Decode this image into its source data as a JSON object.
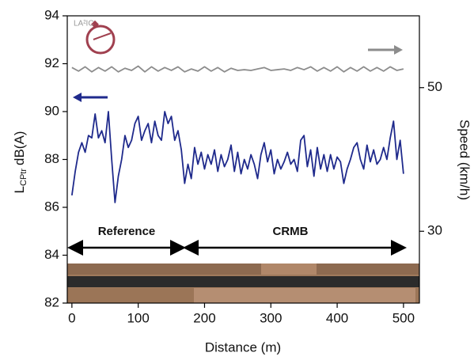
{
  "chart_data": {
    "type": "line",
    "xlabel": "Distance (m)",
    "ylabel": [
      "L",
      "CPtr",
      "dB(A)"
    ],
    "y2label": "Speed (km/h)",
    "logo": "LA²IC",
    "annotations": [
      "Reference",
      "CRMB"
    ],
    "xlim": [
      -7,
      524
    ],
    "xticks": [
      0,
      100,
      200,
      300,
      400,
      500
    ],
    "ylim": [
      82,
      94
    ],
    "yticks": [
      82,
      84,
      86,
      88,
      90,
      92,
      94
    ],
    "y2lim": [
      20,
      60
    ],
    "y2ticks": [
      30,
      50
    ],
    "series": [
      {
        "color": "#1f2a8c",
        "x": [
          0,
          5,
          10,
          15,
          20,
          25,
          30,
          35,
          40,
          45,
          50,
          55,
          60,
          65,
          70,
          75,
          80,
          85,
          90,
          95,
          100,
          105,
          110,
          115,
          120,
          125,
          130,
          135,
          140,
          145,
          150,
          155,
          160,
          165,
          170,
          175,
          180,
          185,
          190,
          195,
          200,
          205,
          210,
          215,
          220,
          225,
          230,
          235,
          240,
          245,
          250,
          255,
          260,
          265,
          270,
          275,
          280,
          285,
          290,
          295,
          300,
          305,
          310,
          315,
          320,
          325,
          330,
          335,
          340,
          345,
          350,
          355,
          360,
          365,
          370,
          375,
          380,
          385,
          390,
          395,
          400,
          405,
          410,
          415,
          420,
          425,
          430,
          435,
          440,
          445,
          450,
          455,
          460,
          465,
          470,
          475,
          480,
          485,
          490,
          495,
          500
        ],
        "values": [
          86.5,
          87.5,
          88.3,
          88.7,
          88.3,
          89.0,
          88.9,
          89.9,
          88.9,
          89.2,
          88.7,
          90.0,
          88.0,
          86.2,
          87.3,
          88.0,
          89.0,
          88.5,
          88.8,
          89.5,
          89.8,
          88.8,
          89.2,
          89.5,
          88.7,
          89.6,
          89.0,
          88.8,
          90.0,
          89.5,
          89.8,
          88.8,
          89.2,
          88.4,
          87.0,
          87.8,
          87.2,
          88.5,
          87.8,
          88.3,
          87.6,
          88.2,
          87.8,
          88.4,
          87.5,
          88.2,
          87.7,
          88.0,
          88.6,
          87.5,
          88.3,
          87.4,
          88.0,
          87.6,
          88.2,
          87.8,
          87.2,
          88.2,
          88.7,
          87.9,
          88.4,
          87.4,
          88.0,
          87.6,
          87.9,
          88.3,
          87.8,
          88.0,
          87.5,
          88.8,
          89.0,
          87.7,
          88.4,
          87.3,
          88.5,
          87.6,
          88.2,
          87.5,
          88.2,
          87.6,
          88.1,
          87.9,
          87.0,
          87.6,
          88.0,
          88.5,
          88.7,
          88.0,
          87.6,
          88.6,
          87.9,
          88.4,
          87.8,
          88.0,
          88.5,
          88.0,
          88.9,
          89.6,
          88.0,
          88.8,
          87.4
        ]
      },
      {
        "color": "#8c8c8c",
        "axis": "y2",
        "x": [
          0,
          10,
          20,
          30,
          40,
          50,
          60,
          70,
          80,
          90,
          100,
          110,
          120,
          130,
          140,
          150,
          160,
          170,
          180,
          190,
          200,
          210,
          220,
          230,
          240,
          250,
          260,
          270,
          280,
          290,
          300,
          310,
          320,
          330,
          340,
          350,
          360,
          370,
          380,
          390,
          400,
          410,
          420,
          430,
          440,
          450,
          460,
          470,
          480,
          490,
          500
        ],
        "values": [
          52.8,
          52.3,
          52.9,
          52.2,
          52.8,
          52.3,
          52.9,
          52.2,
          52.7,
          52.4,
          53.0,
          52.2,
          52.9,
          52.3,
          52.8,
          52.4,
          52.9,
          52.2,
          52.6,
          52.3,
          52.9,
          52.3,
          52.8,
          52.2,
          52.7,
          52.4,
          52.5,
          52.4,
          52.6,
          52.8,
          52.4,
          52.5,
          52.6,
          52.4,
          52.8,
          52.5,
          52.9,
          52.3,
          52.8,
          52.3,
          52.9,
          52.2,
          52.8,
          52.3,
          52.9,
          52.3,
          52.8,
          52.3,
          52.9,
          52.4,
          52.6
        ]
      }
    ]
  }
}
